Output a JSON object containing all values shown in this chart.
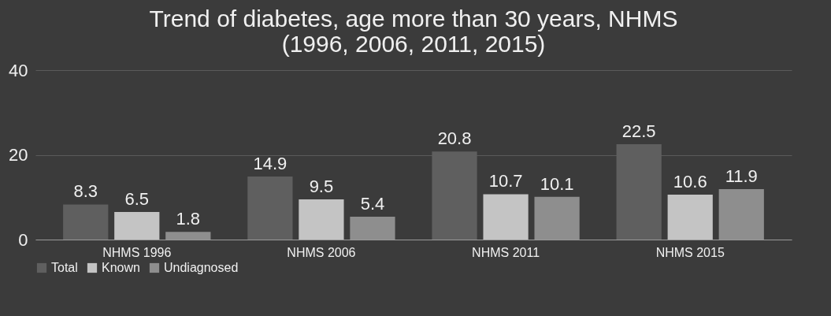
{
  "chart_data": {
    "type": "bar",
    "title": [
      "Trend of diabetes, age more than 30 years, NHMS",
      "(1996, 2006, 2011, 2015)"
    ],
    "categories": [
      "NHMS 1996",
      "NHMS 2006",
      "NHMS 2011",
      "NHMS 2015"
    ],
    "series": [
      {
        "name": "Total",
        "color": "#5f5f5f",
        "values": [
          8.3,
          14.9,
          20.8,
          22.5
        ]
      },
      {
        "name": "Known",
        "color": "#c4c4c4",
        "values": [
          6.5,
          9.5,
          10.7,
          10.6
        ]
      },
      {
        "name": "Undiagnosed",
        "color": "#8e8e8e",
        "values": [
          1.8,
          5.4,
          10.1,
          11.9
        ]
      }
    ],
    "ylim": [
      0,
      40
    ],
    "yticks": [
      0,
      20,
      40
    ],
    "grid": "y",
    "legend": "bottom",
    "data_labels": true
  }
}
